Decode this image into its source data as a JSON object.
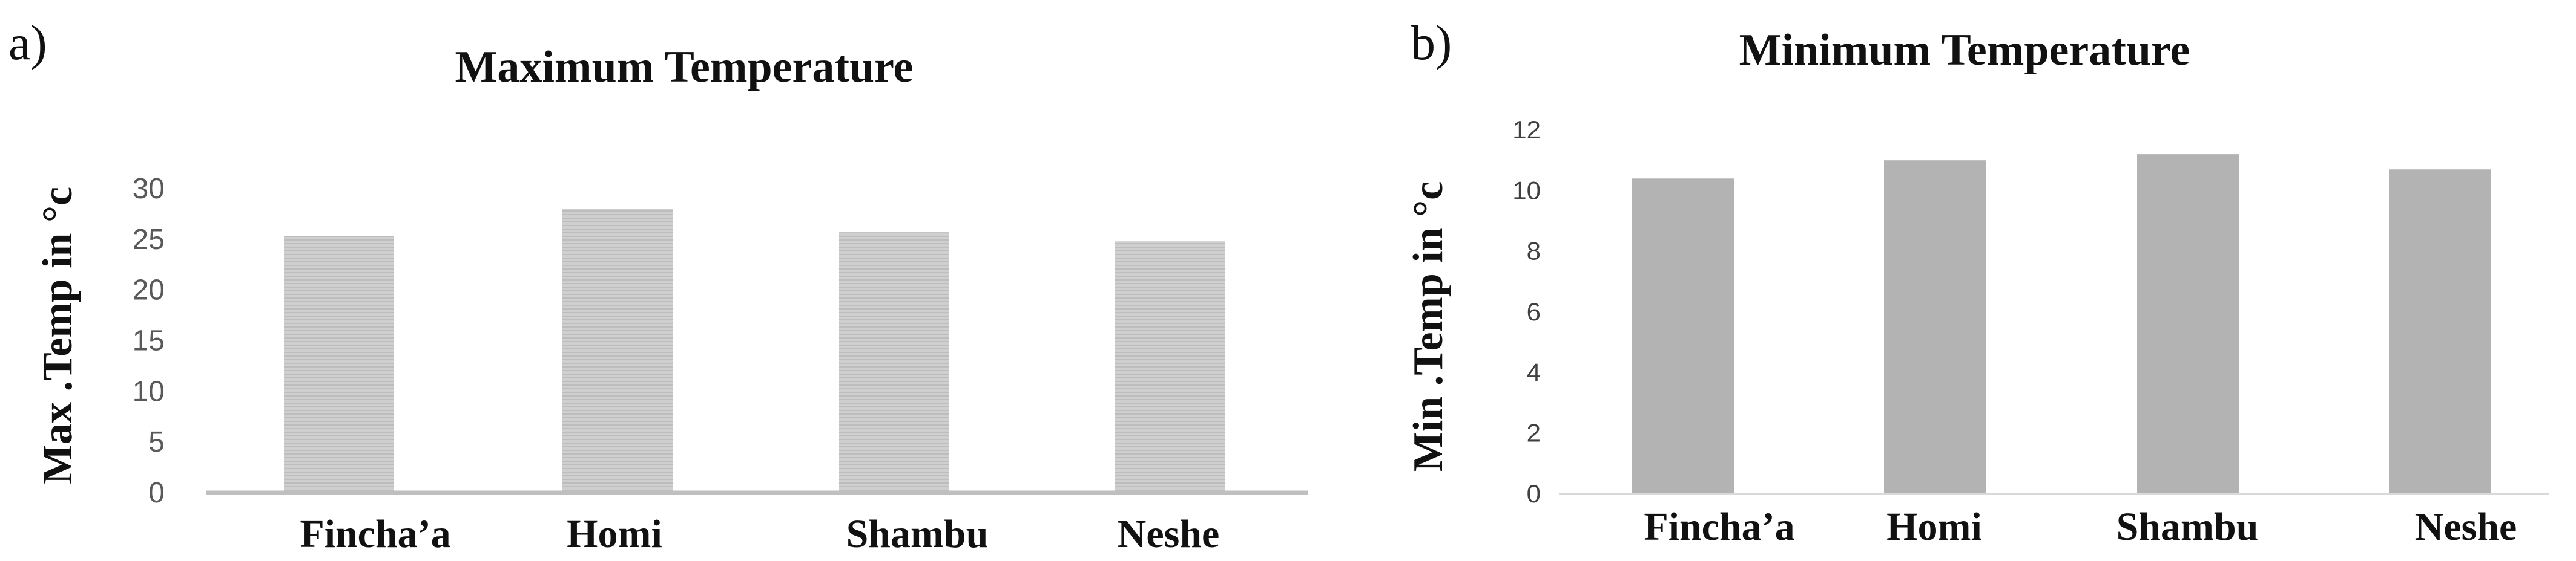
{
  "panels": {
    "a": "a)",
    "b": "b)"
  },
  "colors": {
    "bar_a": "#cdcdcd",
    "bar_a_stripe": "#bdbdbd",
    "bar_b": "#b3b3b3",
    "axis_a": "#bfbfbf",
    "axis_b": "#d9d9d9"
  },
  "chart_data": [
    {
      "type": "bar",
      "title": "Maximum Temperature",
      "ylabel": "Max .Temp in °c",
      "xlabel": "",
      "categories": [
        "Fincha’a",
        "Homi",
        "Shambu",
        "Neshe"
      ],
      "values": [
        25.3,
        28.0,
        25.7,
        24.8
      ],
      "ylim": [
        0,
        30
      ],
      "yticks": [
        "0",
        "5",
        "10",
        "15",
        "20",
        "25",
        "30"
      ],
      "grid": false,
      "legend": "none"
    },
    {
      "type": "bar",
      "title": "Minimum  Temperature",
      "ylabel": "Min .Temp in °c",
      "xlabel": "",
      "categories": [
        "Fincha’a",
        "Homi",
        "Shambu",
        "Neshe"
      ],
      "values": [
        10.4,
        11.0,
        11.2,
        10.7
      ],
      "ylim": [
        0,
        12
      ],
      "yticks": [
        "0",
        "2",
        "4",
        "6",
        "8",
        "10",
        "12"
      ],
      "grid": false,
      "legend": "none"
    }
  ]
}
